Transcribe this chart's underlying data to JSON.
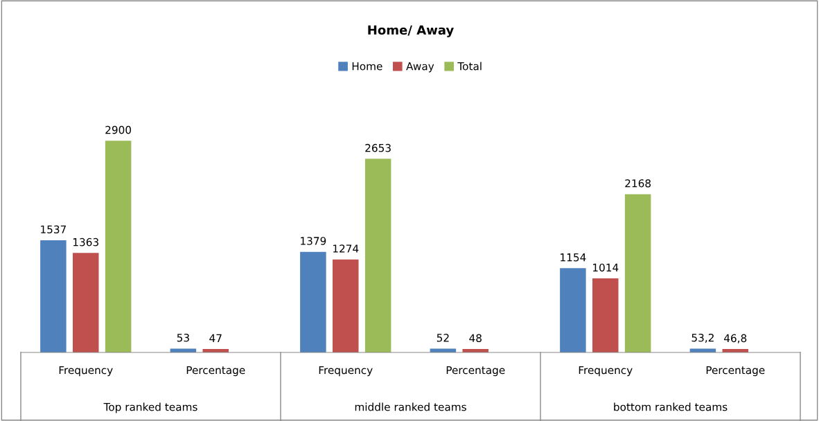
{
  "chart_data": {
    "type": "bar",
    "title": "Home/ Away",
    "categories": [
      "Frequency",
      "Percentage",
      "Frequency",
      "Percentage",
      "Frequency",
      "Percentage"
    ],
    "series": [
      {
        "name": "Home",
        "color": "#4f81bd",
        "values": [
          1537,
          53,
          1379,
          52,
          1154,
          53.2
        ],
        "value_labels": [
          "1537",
          "53",
          "1379",
          "52",
          "1154",
          "53,2"
        ]
      },
      {
        "name": "Away",
        "color": "#c0504d",
        "values": [
          1363,
          47,
          1274,
          48,
          1014,
          46.8
        ],
        "value_labels": [
          "1363",
          "47",
          "1274",
          "48",
          "1014",
          "46,8"
        ]
      },
      {
        "name": "Total",
        "color": "#9bbb59",
        "values": [
          2900,
          null,
          2653,
          null,
          2168,
          null
        ],
        "value_labels": [
          "2900",
          null,
          "2653",
          null,
          "2168",
          null
        ]
      }
    ],
    "annotations": [
      "Top ranked teams",
      "middle ranked teams",
      "bottom ranked teams"
    ],
    "legend": "top",
    "grid": false
  }
}
